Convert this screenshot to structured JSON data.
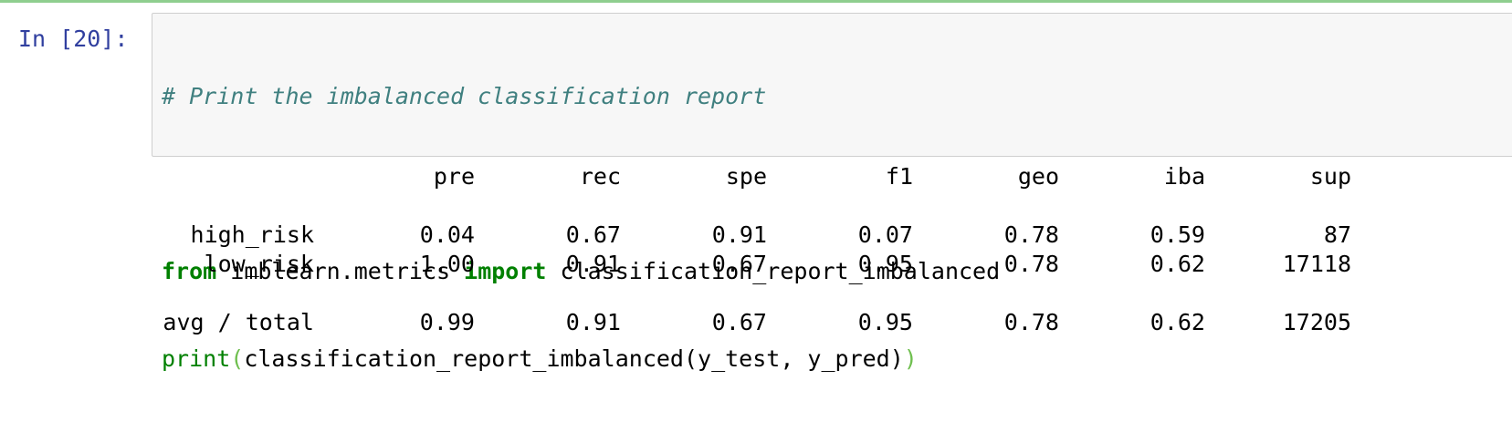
{
  "cell": {
    "prompt": "In [20]:",
    "code": {
      "comment": "# Print the imbalanced classification report",
      "line2": {
        "kw_from": "from",
        "module": " imblearn.metrics ",
        "kw_import": "import",
        "name": " classification_report_imbalanced"
      },
      "line3": {
        "builtin": "print",
        "open_paren": "(",
        "call": "classification_report_imbalanced(y_test, y_pred)",
        "close_paren": ")"
      }
    }
  },
  "output": {
    "headers": [
      "pre",
      "rec",
      "spe",
      "f1",
      "geo",
      "iba",
      "sup"
    ],
    "rows": [
      {
        "label": "high_risk",
        "values": [
          "0.04",
          "0.67",
          "0.91",
          "0.07",
          "0.78",
          "0.59",
          "87"
        ]
      },
      {
        "label": "low_risk",
        "values": [
          "1.00",
          "0.91",
          "0.67",
          "0.95",
          "0.78",
          "0.62",
          "17118"
        ]
      }
    ],
    "total": {
      "label": "avg / total",
      "values": [
        "0.99",
        "0.91",
        "0.67",
        "0.95",
        "0.78",
        "0.62",
        "17205"
      ]
    }
  },
  "colors": {
    "prompt": "#303f9f",
    "comment": "#408080",
    "keyword": "#008000",
    "bracket": "#6fbf4f",
    "input_bg": "#f7f7f7",
    "active_bar": "#8fce8f"
  }
}
